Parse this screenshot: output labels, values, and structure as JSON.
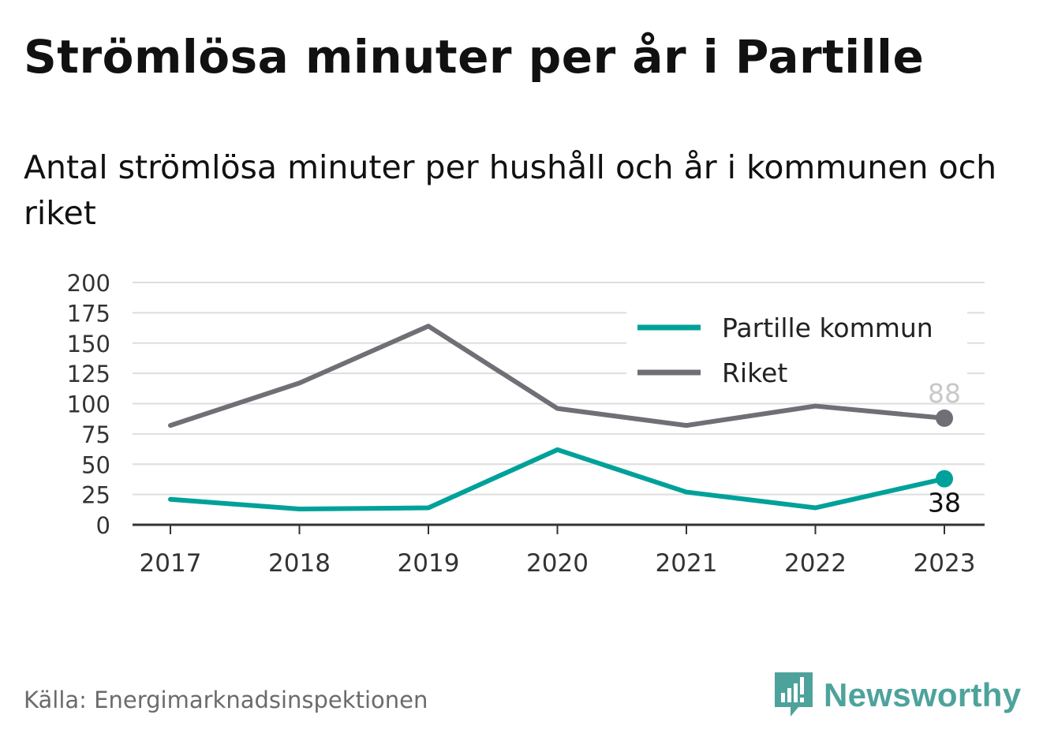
{
  "title": "Strömlösa minuter per år i Partille",
  "subtitle": "Antal strömlösa minuter per hushåll och år i kommunen och riket",
  "source": "Källa: Energimarknadsinspektionen",
  "brand": {
    "name": "Newsworthy",
    "color": "#4da39b"
  },
  "chart_data": {
    "type": "line",
    "x": [
      "2017",
      "2018",
      "2019",
      "2020",
      "2021",
      "2022",
      "2023"
    ],
    "series": [
      {
        "name": "Partille kommun",
        "color": "#00a19a",
        "values": [
          21,
          13,
          14,
          62,
          27,
          14,
          38
        ]
      },
      {
        "name": "Riket",
        "color": "#6f6f76",
        "values": [
          82,
          117,
          164,
          96,
          82,
          98,
          88
        ]
      }
    ],
    "end_labels": [
      "38",
      "88"
    ],
    "ylim": [
      0,
      200
    ],
    "yticks": [
      0,
      25,
      50,
      75,
      100,
      125,
      150,
      175,
      200
    ],
    "grid": true,
    "legend": "top-right"
  }
}
